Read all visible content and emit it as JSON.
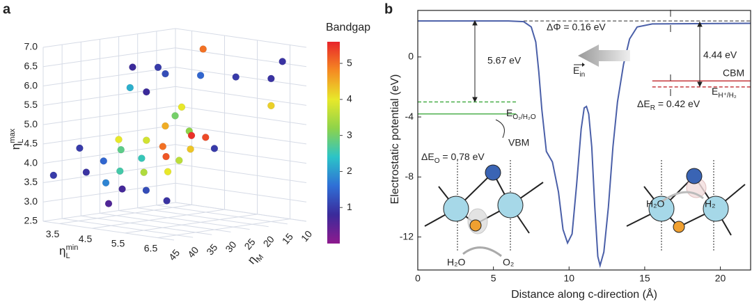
{
  "chart_data": [
    {
      "type": "scatter3d",
      "panel_label": "a",
      "xlabel": {
        "symbol": "η",
        "sub": "L",
        "sup": "min"
      },
      "ylabel": {
        "symbol": "η",
        "sub": "M"
      },
      "zlabel": {
        "symbol": "η",
        "sub": "L",
        "sup": "max"
      },
      "xlim": [
        3,
        7
      ],
      "ylim": [
        10,
        45
      ],
      "zlim": [
        2.5,
        7.0
      ],
      "xticks": [
        3.5,
        4.5,
        5.5,
        6.5
      ],
      "yticks": [
        10,
        15,
        20,
        25,
        30,
        35,
        40,
        45
      ],
      "zticks": [
        2.5,
        {
          "value": 3.0,
          "label": "3.0"
        },
        3.5,
        {
          "value": 4.0,
          "label": "4.0"
        },
        4.5,
        {
          "value": 5.0,
          "label": "5.0"
        },
        5.5,
        {
          "value": 6.0,
          "label": "6.0"
        },
        6.5,
        {
          "value": 7.0,
          "label": "7.0"
        }
      ],
      "x": [
        5.0,
        4.0,
        4.2,
        5.0,
        5.5,
        6.0,
        6.5,
        4.5,
        5.0,
        6.5,
        5.5,
        6.5,
        5.3,
        5.0,
        5.5,
        5.8,
        6.0,
        5.0,
        4.5,
        4.8,
        5.5,
        6.0,
        5.2,
        5.6,
        6.0,
        4.5,
        5.0,
        5.5,
        6.0,
        4.2,
        4.8,
        5.3,
        5.8,
        3.2,
        5.0,
        6.2,
        6.5,
        4.0
      ],
      "y": [
        20,
        30,
        25,
        30,
        25,
        20,
        15,
        35,
        35,
        12,
        30,
        15,
        30,
        30,
        28,
        30,
        28,
        35,
        38,
        40,
        35,
        32,
        38,
        35,
        35,
        42,
        42,
        40,
        38,
        44,
        44,
        44,
        42,
        44,
        45,
        40,
        30,
        44
      ],
      "z": [
        6.85,
        6.4,
        6.35,
        6.35,
        6.3,
        6.25,
        6.2,
        6.0,
        5.95,
        6.6,
        5.55,
        5.5,
        5.3,
        5.0,
        4.9,
        4.85,
        4.8,
        4.7,
        4.7,
        4.5,
        4.6,
        4.55,
        4.3,
        4.35,
        4.3,
        4.2,
        4.0,
        4.0,
        4.05,
        3.9,
        3.7,
        3.6,
        3.6,
        3.7,
        3.2,
        3.35,
        4.6,
        4.5
      ],
      "c": [
        5.0,
        0.8,
        1.0,
        1.2,
        1.5,
        1.0,
        0.9,
        2.2,
        0.8,
        0.9,
        4.0,
        4.2,
        3.0,
        4.5,
        3.2,
        5.5,
        5.3,
        3.8,
        4.0,
        2.8,
        5.0,
        4.3,
        2.5,
        5.2,
        3.6,
        1.5,
        2.6,
        3.5,
        4.0,
        0.9,
        1.8,
        0.7,
        1.2,
        1.0,
        0.6,
        0.9,
        1.0,
        1.0
      ],
      "colorbar": {
        "label": "Bandgap",
        "clim": [
          0,
          5.6
        ],
        "ticks": [
          1,
          2,
          3,
          4,
          5
        ],
        "colormap": [
          "#8e1a8e",
          "#3b2a9a",
          "#2f6fd6",
          "#2bc4c8",
          "#8ed34a",
          "#e8e82a",
          "#f58a22",
          "#e8242a"
        ]
      }
    },
    {
      "type": "line",
      "panel_label": "b",
      "xlabel": "Distance along c-direction (Å)",
      "ylabel": "Electrostatic potential (eV)",
      "xlim": [
        0,
        22
      ],
      "ylim": [
        -14.2,
        3.1
      ],
      "xticks": [
        0,
        5,
        10,
        15,
        20
      ],
      "yticks": [
        0,
        -4,
        -8,
        -12
      ],
      "series": [
        {
          "color": "#4a5fa8",
          "x": [
            0,
            6,
            7,
            7.5,
            7.8,
            8.0,
            8.2,
            8.5,
            8.9,
            9.3,
            9.6,
            9.9,
            10.2,
            10.5,
            10.8,
            11.0,
            11.15,
            11.3,
            11.5,
            11.7,
            11.9,
            12.05,
            12.3,
            12.6,
            12.9,
            13.2,
            13.6,
            14.0,
            14.5,
            15.5,
            22
          ],
          "values": [
            2.4,
            2.4,
            2.35,
            2.0,
            1.0,
            -1.0,
            -3.5,
            -6.3,
            -7.0,
            -9.0,
            -11.5,
            -12.4,
            -11.8,
            -8.5,
            -4.8,
            -3.4,
            -3.3,
            -3.8,
            -6.0,
            -10,
            -13.3,
            -13.9,
            -13,
            -10,
            -6,
            -3,
            -0.5,
            1.2,
            2.0,
            2.2,
            2.24
          ]
        }
      ],
      "levels": [
        {
          "y": 2.4,
          "x0": 7,
          "x1": 22,
          "color": "#555555",
          "dashed": true
        },
        {
          "y": -3.0,
          "x0": 0,
          "x1": 6.5,
          "color": "#2ca02c",
          "dashed": true
        },
        {
          "y": -3.8,
          "x0": 0,
          "x1": 6.5,
          "color": "#2ca02c",
          "dashed": false
        },
        {
          "y": -1.6,
          "x0": 15.5,
          "x1": 22,
          "color": "#c0282d",
          "dashed": false
        },
        {
          "y": -2.0,
          "x0": 15.5,
          "x1": 22,
          "color": "#c0282d",
          "dashed": true
        }
      ],
      "annotations": {
        "delta_phi": "ΔΦ = 0.16 eV",
        "gap_left": "5.67 eV",
        "gap_right": "4.44 eV",
        "cbm": "CBM",
        "vbm": "VBM",
        "e_h": {
          "text": "E",
          "sub": "H⁺/H₂"
        },
        "delta_e_r": {
          "text": "ΔE",
          "sub": "R",
          "tail": " = 0.42 eV"
        },
        "e_o": {
          "text": "E",
          "sub": "O₂/H₂O"
        },
        "delta_e_o": {
          "text": "ΔE",
          "sub": "O",
          "tail": " = 0.78 eV"
        },
        "e_in": {
          "text": "E",
          "sub": "in"
        },
        "h2o_left": "H₂O",
        "o2": "O₂",
        "h2o_right": "H₂O",
        "h2": "H₂"
      }
    }
  ]
}
